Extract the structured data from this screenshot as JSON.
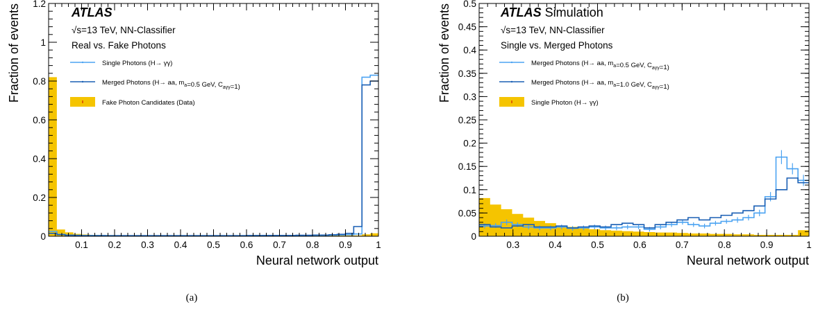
{
  "chart_data": [
    {
      "type": "step-histogram",
      "panel_label": "(a)",
      "atlas_label": "ATLAS",
      "atlas_suffix": "",
      "sqrt_s": "√s=13 TeV, NN-Classifier",
      "subtitle": "Real vs. Fake Photons",
      "xlabel": "Neural network output",
      "ylabel": "Fraction of events",
      "xlim": [
        0.0,
        1.0
      ],
      "ylim": [
        0.0,
        1.2
      ],
      "x_ticks": [
        "0.1",
        "0.2",
        "0.3",
        "0.4",
        "0.5",
        "0.6",
        "0.7",
        "0.8",
        "0.9",
        "1"
      ],
      "y_ticks": [
        "0",
        "0.2",
        "0.4",
        "0.6",
        "0.8",
        "1",
        "1.2"
      ],
      "bin_edges": [
        0,
        0.025,
        0.05,
        0.075,
        0.1,
        0.125,
        0.15,
        0.175,
        0.2,
        0.225,
        0.25,
        0.275,
        0.3,
        0.325,
        0.35,
        0.375,
        0.4,
        0.425,
        0.45,
        0.475,
        0.5,
        0.525,
        0.55,
        0.575,
        0.6,
        0.625,
        0.65,
        0.675,
        0.7,
        0.725,
        0.75,
        0.775,
        0.8,
        0.825,
        0.85,
        0.875,
        0.9,
        0.925,
        0.95,
        0.975,
        1.0
      ],
      "series": [
        {
          "name": "Fake Photon Candidates (Data)",
          "style": "filled",
          "color": "#f5c400",
          "values": [
            0.82,
            0.035,
            0.02,
            0.012,
            0.009,
            0.007,
            0.006,
            0.006,
            0.005,
            0.005,
            0.004,
            0.004,
            0.004,
            0.004,
            0.004,
            0.004,
            0.004,
            0.004,
            0.004,
            0.004,
            0.004,
            0.004,
            0.004,
            0.004,
            0.004,
            0.004,
            0.004,
            0.004,
            0.004,
            0.004,
            0.004,
            0.004,
            0.004,
            0.004,
            0.004,
            0.004,
            0.004,
            0.004,
            0.01,
            0.015
          ]
        },
        {
          "name": "Single Photons (H→ γγ)",
          "style": "line",
          "color": "#4ba3f2",
          "values": [
            0.025,
            0.01,
            0.006,
            0.005,
            0.004,
            0.004,
            0.004,
            0.003,
            0.003,
            0.003,
            0.003,
            0.003,
            0.003,
            0.003,
            0.003,
            0.003,
            0.003,
            0.003,
            0.003,
            0.003,
            0.003,
            0.003,
            0.003,
            0.003,
            0.003,
            0.003,
            0.004,
            0.004,
            0.004,
            0.004,
            0.004,
            0.004,
            0.005,
            0.005,
            0.006,
            0.007,
            0.008,
            0.012,
            0.82,
            0.83
          ]
        },
        {
          "name": "Merged Photons (H→ aa, m_a=0.5 GeV, C_aγγ=1)",
          "style": "line",
          "color": "#1a5fb4",
          "values": [
            0.015,
            0.008,
            0.005,
            0.004,
            0.003,
            0.003,
            0.003,
            0.003,
            0.003,
            0.003,
            0.003,
            0.003,
            0.003,
            0.003,
            0.003,
            0.003,
            0.003,
            0.003,
            0.003,
            0.003,
            0.003,
            0.003,
            0.003,
            0.003,
            0.004,
            0.004,
            0.004,
            0.004,
            0.004,
            0.004,
            0.005,
            0.005,
            0.006,
            0.006,
            0.008,
            0.01,
            0.015,
            0.05,
            0.78,
            0.8
          ]
        }
      ]
    },
    {
      "type": "step-histogram",
      "panel_label": "(b)",
      "atlas_label": "ATLAS",
      "atlas_suffix": "Simulation",
      "sqrt_s": "√s=13 TeV, NN-Classifier",
      "subtitle": "Single vs. Merged Photons",
      "xlabel": "Neural network output",
      "ylabel": "Fraction of events",
      "xlim": [
        0.22,
        1.0
      ],
      "ylim": [
        0.0,
        0.5
      ],
      "x_ticks": [
        "0.3",
        "0.4",
        "0.5",
        "0.6",
        "0.7",
        "0.8",
        "0.9",
        "1"
      ],
      "y_ticks": [
        "0",
        "0.05",
        "0.1",
        "0.15",
        "0.2",
        "0.25",
        "0.3",
        "0.35",
        "0.4",
        "0.45",
        "0.5"
      ],
      "bin_edges": [
        0.22,
        0.246,
        0.272,
        0.298,
        0.324,
        0.35,
        0.376,
        0.402,
        0.428,
        0.454,
        0.48,
        0.506,
        0.532,
        0.558,
        0.584,
        0.61,
        0.636,
        0.662,
        0.688,
        0.714,
        0.74,
        0.766,
        0.792,
        0.818,
        0.844,
        0.87,
        0.896,
        0.922,
        0.948,
        0.974,
        1.0
      ],
      "series": [
        {
          "name": "Single Photon (H→ γγ)",
          "style": "filled",
          "color": "#f5c400",
          "values": [
            0.082,
            0.068,
            0.058,
            0.048,
            0.04,
            0.033,
            0.028,
            0.023,
            0.02,
            0.017,
            0.015,
            0.013,
            0.012,
            0.011,
            0.01,
            0.009,
            0.008,
            0.008,
            0.007,
            0.006,
            0.006,
            0.005,
            0.005,
            0.004,
            0.004,
            0.003,
            0.003,
            0.003,
            0.003,
            0.013
          ]
        },
        {
          "name": "Merged Photons (H→ aa, m_a=0.5 GeV, C_aγγ=1)",
          "style": "line-errors",
          "color": "#4ba3f2",
          "values": [
            0.022,
            0.023,
            0.03,
            0.025,
            0.02,
            0.018,
            0.018,
            0.02,
            0.017,
            0.018,
            0.02,
            0.018,
            0.018,
            0.02,
            0.02,
            0.015,
            0.02,
            0.025,
            0.03,
            0.025,
            0.022,
            0.028,
            0.032,
            0.035,
            0.04,
            0.05,
            0.085,
            0.17,
            0.145,
            0.12
          ],
          "errors": [
            0.005,
            0.005,
            0.006,
            0.005,
            0.005,
            0.005,
            0.005,
            0.005,
            0.005,
            0.005,
            0.005,
            0.005,
            0.005,
            0.005,
            0.005,
            0.005,
            0.005,
            0.005,
            0.005,
            0.005,
            0.005,
            0.005,
            0.005,
            0.006,
            0.006,
            0.007,
            0.01,
            0.015,
            0.012,
            0.012
          ]
        },
        {
          "name": "Merged Photons (H→ aa, m_a=1.0 GeV, C_aγγ=1)",
          "style": "line",
          "color": "#1a5fb4",
          "values": [
            0.025,
            0.02,
            0.018,
            0.022,
            0.025,
            0.02,
            0.02,
            0.022,
            0.018,
            0.02,
            0.022,
            0.02,
            0.025,
            0.028,
            0.025,
            0.018,
            0.025,
            0.03,
            0.035,
            0.04,
            0.035,
            0.04,
            0.045,
            0.05,
            0.055,
            0.065,
            0.08,
            0.1,
            0.125,
            0.115
          ]
        }
      ]
    }
  ]
}
